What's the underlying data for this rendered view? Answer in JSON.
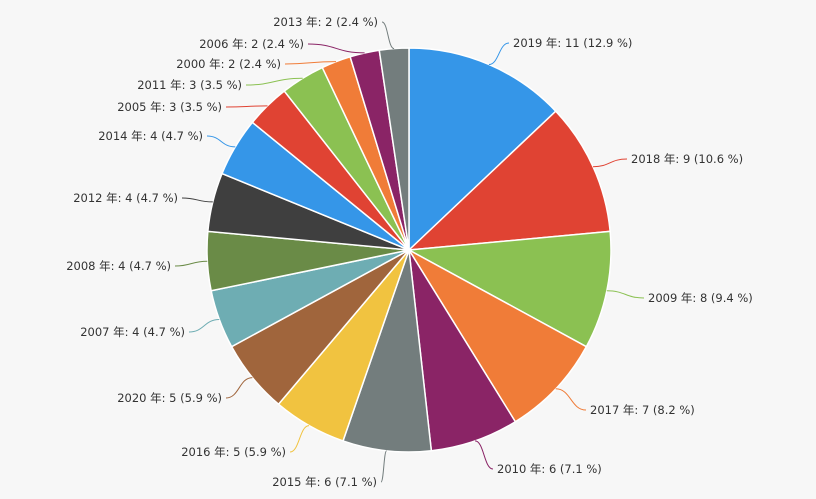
{
  "chart_data": {
    "type": "pie",
    "title": "",
    "slices": [
      {
        "label": "2019 年: 11 (12.9 %)",
        "category": "2019 年",
        "value": 11,
        "percent": 12.9,
        "color": "#3596e8"
      },
      {
        "label": "2018 年: 9 (10.6 %)",
        "category": "2018 年",
        "value": 9,
        "percent": 10.6,
        "color": "#e04333"
      },
      {
        "label": "2009 年: 8 (9.4 %)",
        "category": "2009 年",
        "value": 8,
        "percent": 9.4,
        "color": "#8bc152"
      },
      {
        "label": "2017 年: 7 (8.2 %)",
        "category": "2017 年",
        "value": 7,
        "percent": 8.2,
        "color": "#f07c38"
      },
      {
        "label": "2010 年: 6 (7.1 %)",
        "category": "2010 年",
        "value": 6,
        "percent": 7.1,
        "color": "#8a2466"
      },
      {
        "label": "2015 年: 6 (7.1 %)",
        "category": "2015 年",
        "value": 6,
        "percent": 7.1,
        "color": "#737d7d"
      },
      {
        "label": "2016 年: 5 (5.9 %)",
        "category": "2016 年",
        "value": 5,
        "percent": 5.9,
        "color": "#f1c340"
      },
      {
        "label": "2020 年: 5 (5.9 %)",
        "category": "2020 年",
        "value": 5,
        "percent": 5.9,
        "color": "#a0653c"
      },
      {
        "label": "2007 年: 4 (4.7 %)",
        "category": "2007 年",
        "value": 4,
        "percent": 4.7,
        "color": "#6eadb3"
      },
      {
        "label": "2008 年: 4 (4.7 %)",
        "category": "2008 年",
        "value": 4,
        "percent": 4.7,
        "color": "#6a8b47"
      },
      {
        "label": "2012 年: 4 (4.7 %)",
        "category": "2012 年",
        "value": 4,
        "percent": 4.7,
        "color": "#3f3f3f"
      },
      {
        "label": "2014 年: 4 (4.7 %)",
        "category": "2014 年",
        "value": 4,
        "percent": 4.7,
        "color": "#3596e8"
      },
      {
        "label": "2005 年: 3 (3.5 %)",
        "category": "2005 年",
        "value": 3,
        "percent": 3.5,
        "color": "#e04333"
      },
      {
        "label": "2011 年: 3 (3.5 %)",
        "category": "2011 年",
        "value": 3,
        "percent": 3.5,
        "color": "#8bc152"
      },
      {
        "label": "2000 年: 2 (2.4 %)",
        "category": "2000 年",
        "value": 2,
        "percent": 2.4,
        "color": "#f07c38"
      },
      {
        "label": "2006 年: 2 (2.4 %)",
        "category": "2006 年",
        "value": 2,
        "percent": 2.4,
        "color": "#8a2466"
      },
      {
        "label": "2013 年: 2 (2.4 %)",
        "category": "2013 年",
        "value": 2,
        "percent": 2.4,
        "color": "#737d7d"
      }
    ]
  }
}
